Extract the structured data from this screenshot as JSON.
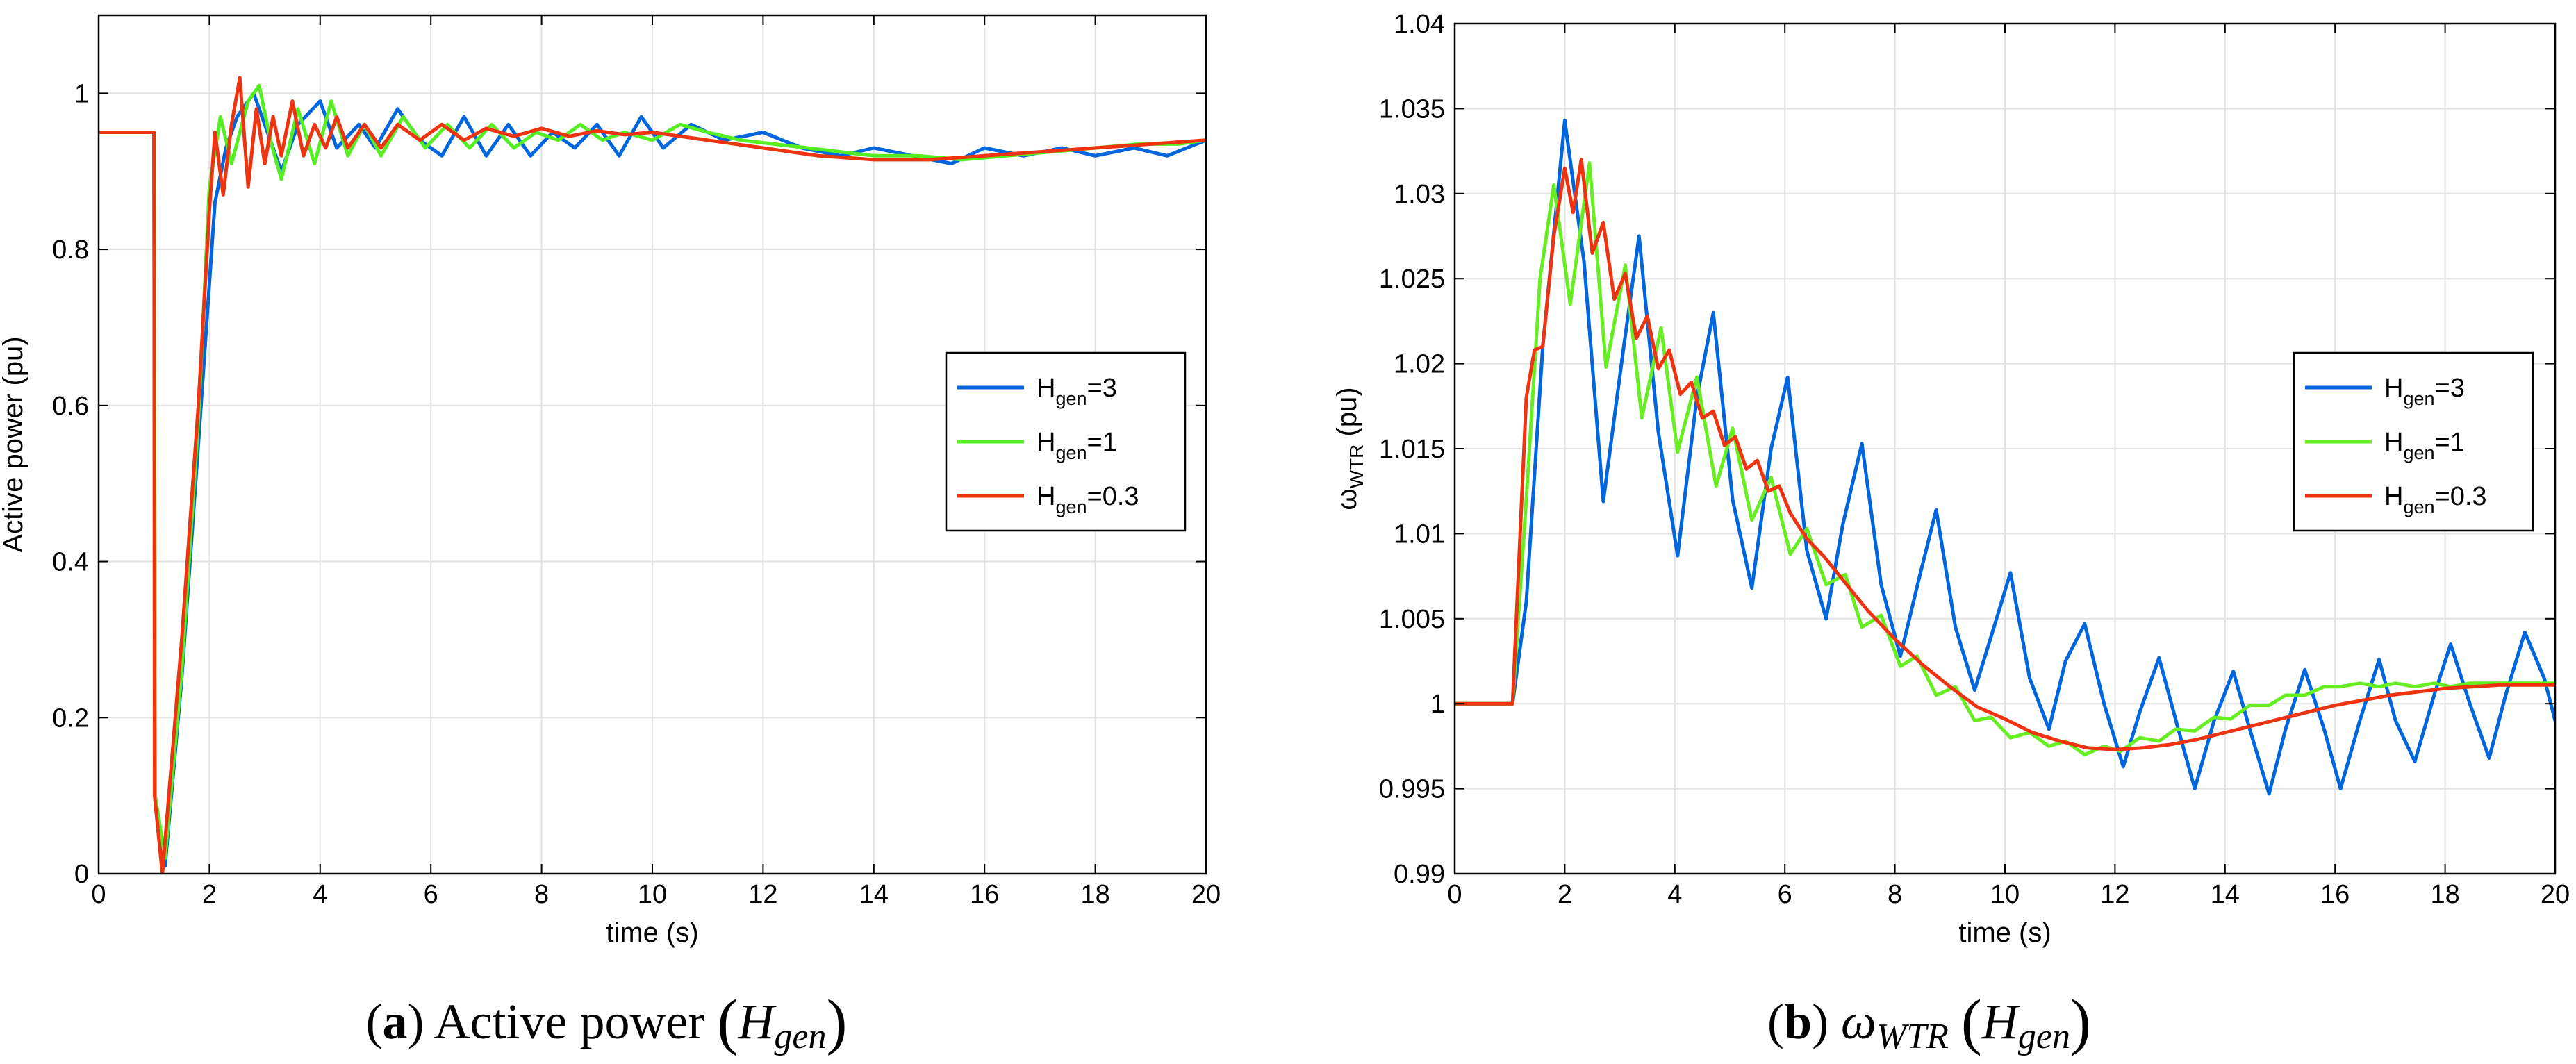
{
  "chart_data": [
    {
      "type": "line",
      "id": "a",
      "xlabel": "time (s)",
      "ylabel": "Active power (pu)",
      "xlim": [
        0,
        20
      ],
      "ylim": [
        0,
        1.1
      ],
      "xticks": [
        0,
        2,
        4,
        6,
        8,
        10,
        12,
        14,
        16,
        18,
        20
      ],
      "yticks": [
        0,
        0.2,
        0.4,
        0.6,
        0.8,
        1
      ],
      "grid": true,
      "legend_position": "middle-right",
      "caption": {
        "tag": "a",
        "text": "Active power",
        "symbol": "H",
        "subscript": "gen"
      },
      "series": [
        {
          "name": "H",
          "sub": "gen",
          "value_text": "=3",
          "color": "#0066dd",
          "x": [
            0,
            1,
            1.02,
            1.2,
            1.5,
            1.8,
            2.1,
            2.3,
            2.5,
            2.8,
            3,
            3.3,
            3.6,
            4,
            4.3,
            4.7,
            5,
            5.4,
            5.8,
            6.2,
            6.6,
            7,
            7.4,
            7.8,
            8.2,
            8.6,
            9,
            9.4,
            9.8,
            10.2,
            10.7,
            11.3,
            12,
            12.7,
            13.4,
            14,
            14.7,
            15.4,
            16,
            16.7,
            17.4,
            18,
            18.7,
            19.3,
            20
          ],
          "y": [
            0.95,
            0.95,
            0.1,
            0.01,
            0.25,
            0.55,
            0.86,
            0.93,
            0.97,
            1.0,
            0.96,
            0.9,
            0.96,
            0.99,
            0.93,
            0.96,
            0.93,
            0.98,
            0.94,
            0.92,
            0.97,
            0.92,
            0.96,
            0.92,
            0.95,
            0.93,
            0.96,
            0.92,
            0.97,
            0.93,
            0.96,
            0.94,
            0.95,
            0.93,
            0.92,
            0.93,
            0.92,
            0.91,
            0.93,
            0.92,
            0.93,
            0.92,
            0.93,
            0.92,
            0.94
          ]
        },
        {
          "name": "H",
          "sub": "gen",
          "value_text": "=1",
          "color": "#55ee22",
          "x": [
            0,
            1,
            1.02,
            1.2,
            1.5,
            1.8,
            2.0,
            2.2,
            2.4,
            2.7,
            2.9,
            3.1,
            3.3,
            3.6,
            3.9,
            4.2,
            4.5,
            4.8,
            5.1,
            5.5,
            5.9,
            6.3,
            6.7,
            7.1,
            7.5,
            7.9,
            8.3,
            8.7,
            9.1,
            9.5,
            10,
            10.5,
            11,
            11.6,
            12.2,
            12.8,
            13.4,
            14,
            14.8,
            15.6,
            16.4,
            17.2,
            18,
            18.8,
            19.5,
            20
          ],
          "y": [
            0.95,
            0.95,
            0.1,
            0.02,
            0.26,
            0.58,
            0.88,
            0.97,
            0.91,
            0.99,
            1.01,
            0.94,
            0.89,
            0.98,
            0.91,
            0.99,
            0.92,
            0.96,
            0.92,
            0.97,
            0.93,
            0.96,
            0.93,
            0.96,
            0.93,
            0.95,
            0.94,
            0.96,
            0.94,
            0.95,
            0.94,
            0.96,
            0.95,
            0.94,
            0.935,
            0.93,
            0.925,
            0.92,
            0.92,
            0.915,
            0.92,
            0.925,
            0.93,
            0.935,
            0.935,
            0.94
          ]
        },
        {
          "name": "H",
          "sub": "gen",
          "value_text": "=0.3",
          "color": "#ee3311",
          "x": [
            0,
            1,
            1.01,
            1.15,
            1.5,
            1.8,
            2.0,
            2.1,
            2.25,
            2.4,
            2.55,
            2.7,
            2.85,
            3.0,
            3.15,
            3.3,
            3.5,
            3.7,
            3.9,
            4.1,
            4.3,
            4.5,
            4.8,
            5.1,
            5.4,
            5.8,
            6.2,
            6.6,
            7,
            7.5,
            8,
            8.5,
            9,
            9.5,
            10,
            10.5,
            11,
            12,
            13,
            14,
            15,
            16,
            17,
            18,
            19,
            20
          ],
          "y": [
            0.95,
            0.95,
            0.1,
            0.0,
            0.3,
            0.6,
            0.85,
            0.95,
            0.87,
            0.96,
            1.02,
            0.88,
            0.98,
            0.91,
            0.97,
            0.92,
            0.99,
            0.92,
            0.96,
            0.93,
            0.97,
            0.93,
            0.96,
            0.93,
            0.96,
            0.94,
            0.96,
            0.94,
            0.955,
            0.945,
            0.955,
            0.945,
            0.952,
            0.947,
            0.95,
            0.945,
            0.94,
            0.93,
            0.92,
            0.915,
            0.915,
            0.92,
            0.925,
            0.93,
            0.935,
            0.94
          ]
        }
      ]
    },
    {
      "type": "line",
      "id": "b",
      "xlabel": "time (s)",
      "ylabel": "ω",
      "ylabel_sub": "WTR",
      "ylabel_unit": " (pu)",
      "xlim": [
        0,
        20
      ],
      "ylim": [
        0.99,
        1.04
      ],
      "xticks": [
        0,
        2,
        4,
        6,
        8,
        10,
        12,
        14,
        16,
        18,
        20
      ],
      "yticks": [
        0.99,
        0.995,
        1,
        1.005,
        1.01,
        1.015,
        1.02,
        1.025,
        1.03,
        1.035,
        1.04
      ],
      "yticklabels": [
        "0.99",
        "0.995",
        "1",
        "1.005",
        "1.01",
        "1.015",
        "1.02",
        "1.025",
        "1.03",
        "1.035",
        "1.04"
      ],
      "grid": true,
      "legend_position": "middle-right",
      "caption": {
        "tag": "b",
        "symbol_main": "ω",
        "main_sub": "WTR",
        "symbol": "H",
        "subscript": "gen"
      },
      "series": [
        {
          "name": "H",
          "sub": "gen",
          "value_text": "=3",
          "color": "#0066dd",
          "x": [
            0,
            1.05,
            1.3,
            1.6,
            2.0,
            2.35,
            2.7,
            3.05,
            3.35,
            3.7,
            4.05,
            4.4,
            4.7,
            5.05,
            5.4,
            5.75,
            6.05,
            6.4,
            6.75,
            7.05,
            7.4,
            7.75,
            8.1,
            8.45,
            8.75,
            9.1,
            9.45,
            9.8,
            10.1,
            10.45,
            10.8,
            11.1,
            11.45,
            11.8,
            12.15,
            12.45,
            12.8,
            13.15,
            13.45,
            13.8,
            14.15,
            14.45,
            14.8,
            15.1,
            15.45,
            15.8,
            16.1,
            16.45,
            16.8,
            17.1,
            17.45,
            17.8,
            18.1,
            18.45,
            18.8,
            19.1,
            19.45,
            19.8,
            20
          ],
          "y": [
            1.0,
            1.0,
            1.006,
            1.021,
            1.0343,
            1.026,
            1.0119,
            1.0205,
            1.0275,
            1.016,
            1.0087,
            1.018,
            1.023,
            1.012,
            1.0068,
            1.015,
            1.0192,
            1.009,
            1.005,
            1.0105,
            1.0153,
            1.007,
            1.0028,
            1.0075,
            1.0114,
            1.0045,
            1.0008,
            1.0045,
            1.0077,
            1.0015,
            0.9985,
            1.0025,
            1.0047,
            1.0,
            0.9963,
            0.9995,
            1.0027,
            0.9985,
            0.995,
            0.999,
            1.0019,
            0.9985,
            0.9947,
            0.9985,
            1.002,
            0.9985,
            0.995,
            0.999,
            1.0026,
            0.999,
            0.9966,
            1.0005,
            1.0035,
            1.0,
            0.9968,
            1.0005,
            1.0042,
            1.0015,
            0.999
          ]
        },
        {
          "name": "H",
          "sub": "gen",
          "value_text": "=1",
          "color": "#66ee22",
          "x": [
            0,
            1.05,
            1.3,
            1.55,
            1.8,
            2.1,
            2.45,
            2.75,
            3.1,
            3.4,
            3.75,
            4.05,
            4.4,
            4.75,
            5.05,
            5.4,
            5.75,
            6.1,
            6.4,
            6.75,
            7.1,
            7.4,
            7.75,
            8.1,
            8.4,
            8.75,
            9.1,
            9.45,
            9.75,
            10.1,
            10.45,
            10.8,
            11.1,
            11.45,
            11.8,
            12.1,
            12.45,
            12.8,
            13.1,
            13.45,
            13.8,
            14.1,
            14.45,
            14.8,
            15.1,
            15.45,
            15.8,
            16.1,
            16.45,
            16.8,
            17.1,
            17.45,
            17.8,
            18.1,
            18.45,
            18.8,
            19.1,
            19.45,
            19.8,
            20
          ],
          "y": [
            1.0,
            1.0,
            1.012,
            1.025,
            1.0305,
            1.0235,
            1.0318,
            1.0198,
            1.0258,
            1.0168,
            1.0221,
            1.0148,
            1.0192,
            1.0128,
            1.0162,
            1.0108,
            1.0133,
            1.0088,
            1.0103,
            1.007,
            1.0076,
            1.0045,
            1.0052,
            1.0022,
            1.0028,
            1.0005,
            1.001,
            0.999,
            0.9992,
            0.998,
            0.9983,
            0.9975,
            0.9978,
            0.997,
            0.9975,
            0.9972,
            0.998,
            0.9978,
            0.9985,
            0.9984,
            0.9992,
            0.9991,
            0.9999,
            0.9999,
            1.0005,
            1.0005,
            1.001,
            1.001,
            1.0012,
            1.001,
            1.0012,
            1.001,
            1.0012,
            1.001,
            1.0012,
            1.0012,
            1.0012,
            1.0012,
            1.0012,
            1.0012
          ]
        },
        {
          "name": "H",
          "sub": "gen",
          "value_text": "=0.3",
          "color": "#ee3311",
          "x": [
            0,
            1.05,
            1.3,
            1.45,
            1.6,
            1.8,
            2.0,
            2.15,
            2.3,
            2.5,
            2.7,
            2.9,
            3.1,
            3.3,
            3.5,
            3.7,
            3.9,
            4.1,
            4.3,
            4.5,
            4.7,
            4.9,
            5.1,
            5.3,
            5.5,
            5.7,
            5.9,
            6.1,
            6.4,
            6.7,
            7,
            7.5,
            8,
            8.5,
            9,
            9.5,
            10,
            10.5,
            11,
            11.5,
            12,
            12.5,
            13,
            13.5,
            14,
            14.5,
            15,
            15.5,
            16,
            16.5,
            17,
            17.5,
            18,
            18.5,
            19,
            19.5,
            20
          ],
          "y": [
            1.0,
            1.0,
            1.018,
            1.0208,
            1.021,
            1.0275,
            1.0315,
            1.0289,
            1.032,
            1.0265,
            1.0283,
            1.0238,
            1.0253,
            1.0215,
            1.0228,
            1.0197,
            1.0208,
            1.0182,
            1.0189,
            1.0168,
            1.0172,
            1.0152,
            1.0157,
            1.0138,
            1.0143,
            1.0125,
            1.0128,
            1.0112,
            1.0097,
            1.0087,
            1.0075,
            1.0055,
            1.0038,
            1.0023,
            1.001,
            0.9998,
            0.9991,
            0.9983,
            0.9978,
            0.9974,
            0.9973,
            0.9974,
            0.9976,
            0.9979,
            0.9983,
            0.9987,
            0.9991,
            0.9995,
            0.9999,
            1.0002,
            1.0005,
            1.0007,
            1.0009,
            1.001,
            1.0011,
            1.0011,
            1.0011
          ]
        }
      ]
    }
  ]
}
